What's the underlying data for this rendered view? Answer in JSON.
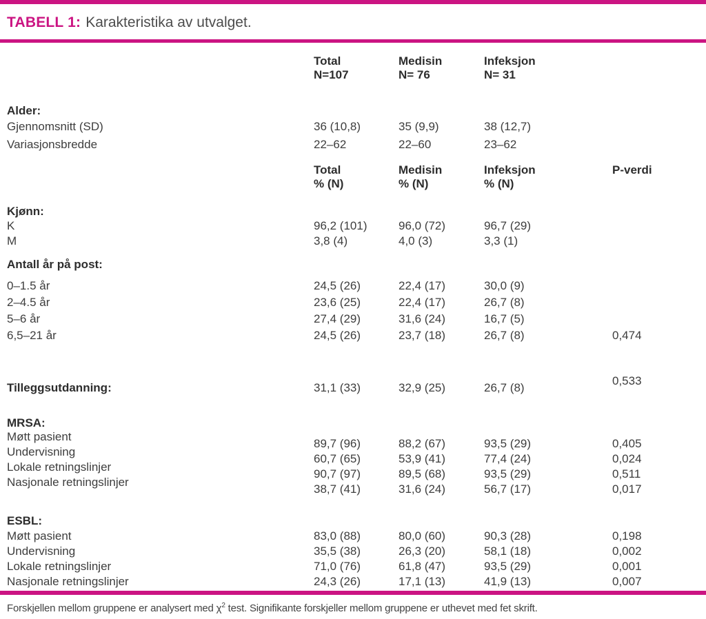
{
  "colors": {
    "accent": "#cb1482",
    "text": "#3d3d3d"
  },
  "title": {
    "badge": "TABELL 1:",
    "text": "Karakteristika av utvalget."
  },
  "header_top": {
    "total": {
      "line1": "Total",
      "line2": "N=107"
    },
    "medisin": {
      "line1": "Medisin",
      "line2": "N= 76"
    },
    "infeksjon": {
      "line1": "Infeksjon",
      "line2": "N= 31"
    }
  },
  "header_mid": {
    "total": {
      "line1": "Total",
      "line2": "% (N)"
    },
    "medisin": {
      "line1": "Medisin",
      "line2": "% (N)"
    },
    "infeksjon": {
      "line1": "Infeksjon",
      "line2": "% (N)"
    },
    "p": "P-verdi"
  },
  "sections": {
    "alder": {
      "header": "Alder:",
      "rows": [
        {
          "label": "Gjennomsnitt (SD)",
          "total": "36 (10,8)",
          "medisin": "35 (9,9)",
          "infeksjon": "38 (12,7)",
          "p": ""
        },
        {
          "label": "Variasjonsbredde",
          "total": "22–62",
          "medisin": "22–60",
          "infeksjon": "23–62",
          "p": ""
        }
      ]
    },
    "kjonn": {
      "header": "Kjønn:",
      "rows": [
        {
          "label": "K",
          "total": "96,2 (101)",
          "medisin": "96,0 (72)",
          "infeksjon": "96,7 (29)",
          "p": ""
        },
        {
          "label": "M",
          "total": "3,8 (4)",
          "medisin": "4,0 (3)",
          "infeksjon": "3,3 (1)",
          "p": ""
        }
      ]
    },
    "antall": {
      "header": "Antall år på post:",
      "rows": [
        {
          "label": "0–1.5 år",
          "total": "24,5 (26)",
          "medisin": "22,4 (17)",
          "infeksjon": "30,0 (9)",
          "p": ""
        },
        {
          "label": "2–4.5 år",
          "total": "23,6 (25)",
          "medisin": "22,4 (17)",
          "infeksjon": "26,7 (8)",
          "p": ""
        },
        {
          "label": "5–6 år",
          "total": "27,4 (29)",
          "medisin": "31,6 (24)",
          "infeksjon": "16,7 (5)",
          "p": ""
        },
        {
          "label": "6,5–21 år",
          "total": "24,5 (26)",
          "medisin": "23,7 (18)",
          "infeksjon": "26,7 (8)",
          "p": "0,474"
        }
      ]
    },
    "tillegg": {
      "header": "Tilleggsutdanning:",
      "total": "31,1 (33)",
      "medisin": "32,9 (25)",
      "infeksjon": "26,7 (8)",
      "p": "0,533"
    },
    "mrsa": {
      "header": "MRSA:",
      "rows": [
        {
          "label": "Møtt pasient",
          "total": "89,7 (96)",
          "medisin": "88,2 (67)",
          "infeksjon": "93,5 (29)",
          "p": "0,405"
        },
        {
          "label": "Undervisning",
          "total": "60,7 (65)",
          "medisin": "53,9 (41)",
          "infeksjon": "77,4 (24)",
          "p": "0,024"
        },
        {
          "label": "Lokale retningslinjer",
          "total": "90,7 (97)",
          "medisin": "89,5 (68)",
          "infeksjon": "93,5 (29)",
          "p": "0,511"
        },
        {
          "label": "Nasjonale retningslinjer",
          "total": "38,7 (41)",
          "medisin": "31,6 (24)",
          "infeksjon": "56,7 (17)",
          "p": "0,017"
        }
      ]
    },
    "esbl": {
      "header": "ESBL:",
      "rows": [
        {
          "label": "Møtt pasient",
          "total": "83,0 (88)",
          "medisin": "80,0 (60)",
          "infeksjon": "90,3 (28)",
          "p": "0,198"
        },
        {
          "label": "Undervisning",
          "total": "35,5 (38)",
          "medisin": "26,3 (20)",
          "infeksjon": "58,1 (18)",
          "p": "0,002"
        },
        {
          "label": "Lokale retningslinjer",
          "total": "71,0 (76)",
          "medisin": "61,8 (47)",
          "infeksjon": "93,5 (29)",
          "p": "0,001"
        },
        {
          "label": "Nasjonale retningslinjer",
          "total": "24,3 (26)",
          "medisin": "17,1 (13)",
          "infeksjon": "41,9 (13)",
          "p": "0,007"
        }
      ]
    }
  },
  "footnote": {
    "part1": "Forskjellen mellom gruppene er analysert med χ",
    "sup": "2",
    "part2": " test. Signifikante forskjeller mellom gruppene er uthevet med fet skrift."
  }
}
